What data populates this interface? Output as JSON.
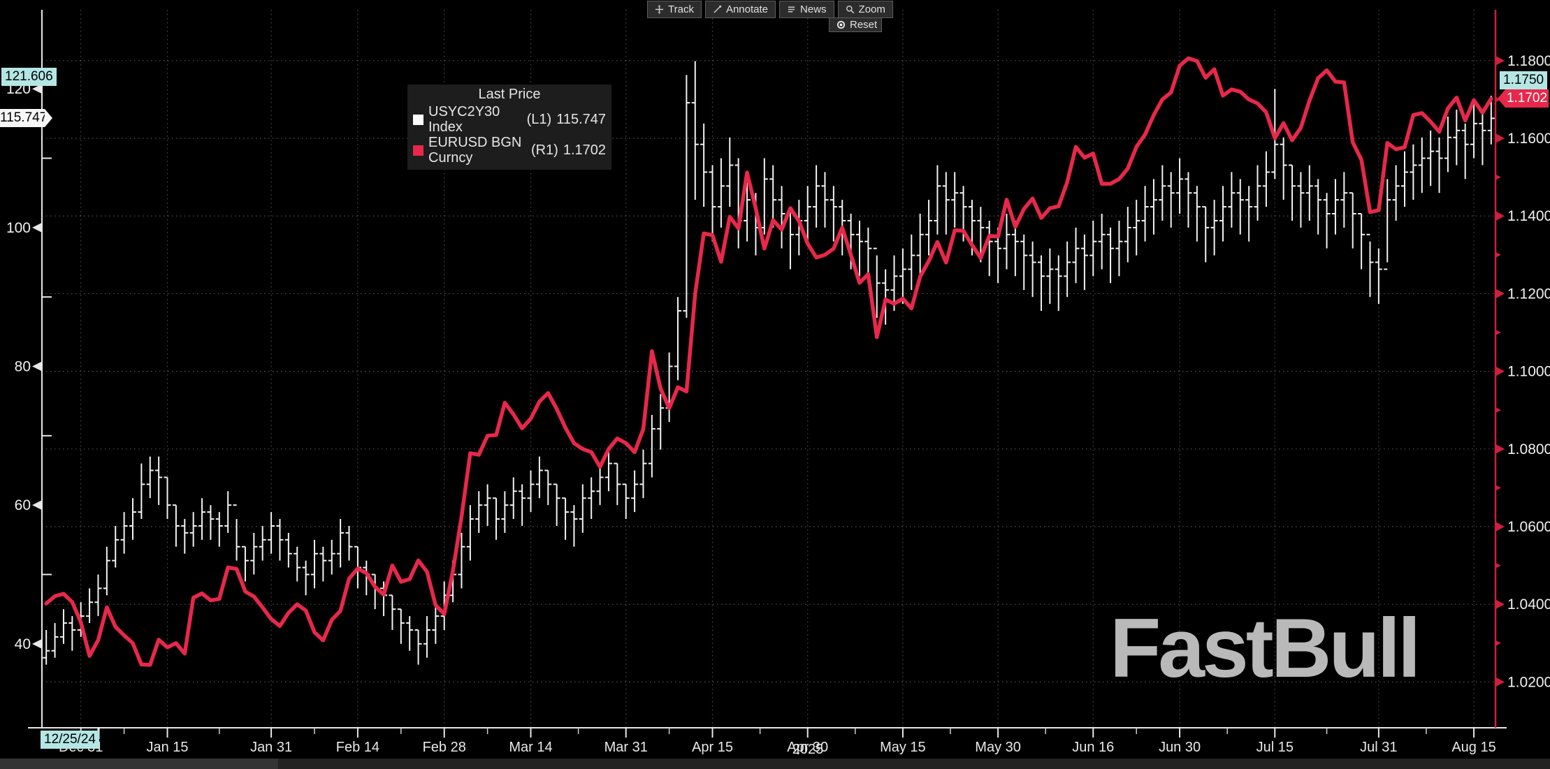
{
  "toolbar": {
    "buttons": [
      {
        "label": "Track",
        "icon": "track-icon"
      },
      {
        "label": "Annotate",
        "icon": "annotate-icon"
      },
      {
        "label": "News",
        "icon": "news-icon"
      },
      {
        "label": "Zoom",
        "icon": "zoom-icon"
      }
    ],
    "reset_label": "Reset"
  },
  "legend": {
    "title": "Last Price",
    "series": [
      {
        "swatch_color": "#ffffff",
        "label": "USYC2Y30 Index",
        "axis": "(L1)",
        "value": "115.747"
      },
      {
        "swatch_color": "#e7284a",
        "label": "EURUSD BGN Curncy",
        "axis": "(R1)",
        "value": "1.1702"
      }
    ]
  },
  "crosshair": {
    "l1_value": "121.606",
    "r1_value": "1.1750",
    "date": "12/25/24"
  },
  "markers": {
    "l1_last": "115.747",
    "r1_last": "1.1702"
  },
  "watermark": {
    "text": "FastBull"
  },
  "colors": {
    "background": "#000000",
    "bar_series": "#f2f2f2",
    "line_series": "#e7284a",
    "right_axis": "#cf1f3d",
    "left_axis": "#e8e8e8",
    "crosshair_box": "#b4e6e4",
    "grid": "#9a9a9a",
    "watermark": "#b9b9b9"
  },
  "chart_data": {
    "type": "mixed",
    "title": "",
    "x_axis": {
      "year_label": "2025",
      "start_date_label": "12/25/24",
      "labels": [
        {
          "text": "Dec 31",
          "index": 4
        },
        {
          "text": "Jan 15",
          "index": 14
        },
        {
          "text": "Jan 31",
          "index": 26
        },
        {
          "text": "Feb 14",
          "index": 36
        },
        {
          "text": "Feb 28",
          "index": 46
        },
        {
          "text": "Mar 14",
          "index": 56
        },
        {
          "text": "Mar 31",
          "index": 67
        },
        {
          "text": "Apr 15",
          "index": 77
        },
        {
          "text": "Apr 30",
          "index": 88
        },
        {
          "text": "May 15",
          "index": 99
        },
        {
          "text": "May 30",
          "index": 110
        },
        {
          "text": "Jun 16",
          "index": 121
        },
        {
          "text": "Jun 30",
          "index": 131
        },
        {
          "text": "Jul 15",
          "index": 142
        },
        {
          "text": "Jul 31",
          "index": 154
        },
        {
          "text": "Aug 15",
          "index": 165
        }
      ]
    },
    "left_axis": {
      "ticks": [
        120,
        100,
        80,
        60,
        40
      ],
      "minor_ticks": [
        110,
        90,
        70,
        50
      ],
      "range": [
        27.9,
        131.4
      ]
    },
    "right_axis": {
      "ticks": [
        1.18,
        1.16,
        1.14,
        1.12,
        1.1,
        1.08,
        1.06,
        1.04,
        1.02
      ],
      "tick_labels": [
        "1.1800",
        "1.1600",
        "1.1400",
        "1.1200",
        "1.1000",
        "1.0800",
        "1.0600",
        "1.0400",
        "1.0200"
      ],
      "minor_ticks": [
        1.17,
        1.15,
        1.13,
        1.11,
        1.09,
        1.07,
        1.05,
        1.03
      ],
      "range": [
        1.0082,
        1.1931
      ]
    },
    "series": [
      {
        "name": "USYC2Y30 Index",
        "axis": "L1",
        "type": "ohlc_bars",
        "color": "#f2f2f2",
        "last": 115.747,
        "bars_hlc": [
          [
            42,
            37,
            39
          ],
          [
            43,
            38,
            41
          ],
          [
            45,
            40,
            43
          ],
          [
            44,
            39,
            42
          ],
          [
            46,
            41,
            44
          ],
          [
            48,
            43,
            46
          ],
          [
            50,
            44,
            48
          ],
          [
            54,
            47,
            52
          ],
          [
            57,
            51,
            55
          ],
          [
            59,
            53,
            57
          ],
          [
            61,
            55,
            59
          ],
          [
            66,
            58,
            63
          ],
          [
            67,
            61,
            65
          ],
          [
            67,
            60,
            64
          ],
          [
            64,
            58,
            60
          ],
          [
            60,
            54,
            57
          ],
          [
            58,
            53,
            56
          ],
          [
            59,
            54,
            57
          ],
          [
            61,
            55,
            59
          ],
          [
            60,
            55,
            58
          ],
          [
            59,
            54,
            57
          ],
          [
            62,
            56,
            60
          ],
          [
            58,
            52,
            54
          ],
          [
            54,
            49,
            52
          ],
          [
            56,
            50,
            54
          ],
          [
            57,
            52,
            55
          ],
          [
            59,
            53,
            57
          ],
          [
            58,
            52,
            55
          ],
          [
            56,
            51,
            53
          ],
          [
            54,
            49,
            51
          ],
          [
            52,
            47,
            50
          ],
          [
            55,
            48,
            53
          ],
          [
            54,
            49,
            52
          ],
          [
            55,
            50,
            53
          ],
          [
            58,
            51,
            56
          ],
          [
            57,
            52,
            54
          ],
          [
            54,
            48,
            51
          ],
          [
            52,
            47,
            50
          ],
          [
            50,
            45,
            48
          ],
          [
            49,
            44,
            47
          ],
          [
            47,
            42,
            45
          ],
          [
            45,
            40,
            43
          ],
          [
            44,
            39,
            42
          ],
          [
            42,
            37,
            40
          ],
          [
            44,
            38,
            42
          ],
          [
            46,
            40,
            44
          ],
          [
            49,
            42,
            47
          ],
          [
            52,
            46,
            50
          ],
          [
            56,
            48,
            54
          ],
          [
            60,
            52,
            58
          ],
          [
            62,
            56,
            60
          ],
          [
            63,
            57,
            61
          ],
          [
            61,
            55,
            58
          ],
          [
            62,
            56,
            60
          ],
          [
            64,
            58,
            62
          ],
          [
            63,
            57,
            61
          ],
          [
            65,
            59,
            63
          ],
          [
            67,
            61,
            65
          ],
          [
            65,
            60,
            63
          ],
          [
            63,
            57,
            61
          ],
          [
            61,
            55,
            59
          ],
          [
            60,
            54,
            58
          ],
          [
            63,
            56,
            61
          ],
          [
            64,
            58,
            62
          ],
          [
            66,
            60,
            64
          ],
          [
            68,
            62,
            66
          ],
          [
            66,
            60,
            63
          ],
          [
            63,
            58,
            61
          ],
          [
            65,
            59,
            63
          ],
          [
            68,
            61,
            66
          ],
          [
            73,
            64,
            71
          ],
          [
            76,
            68,
            74
          ],
          [
            82,
            72,
            80
          ],
          [
            90,
            78,
            88
          ],
          [
            122,
            87,
            118
          ],
          [
            124,
            104,
            112
          ],
          [
            115,
            103,
            108
          ],
          [
            109,
            98,
            103
          ],
          [
            110,
            100,
            106
          ],
          [
            113,
            103,
            109
          ],
          [
            110,
            97,
            101
          ],
          [
            107,
            98,
            104
          ],
          [
            105,
            96,
            100
          ],
          [
            110,
            99,
            107
          ],
          [
            109,
            100,
            104
          ],
          [
            106,
            97,
            102
          ],
          [
            103,
            94,
            99
          ],
          [
            104,
            96,
            101
          ],
          [
            106,
            98,
            103
          ],
          [
            109,
            100,
            106
          ],
          [
            108,
            100,
            104
          ],
          [
            106,
            98,
            103
          ],
          [
            104,
            96,
            101
          ],
          [
            102,
            94,
            99
          ],
          [
            101,
            93,
            98
          ],
          [
            100,
            92,
            97
          ],
          [
            96,
            87,
            92
          ],
          [
            94,
            86,
            91
          ],
          [
            96,
            88,
            93
          ],
          [
            97,
            89,
            94
          ],
          [
            99,
            91,
            96
          ],
          [
            102,
            93,
            99
          ],
          [
            104,
            96,
            101
          ],
          [
            109,
            99,
            106
          ],
          [
            108,
            99,
            104
          ],
          [
            108,
            100,
            105
          ],
          [
            106,
            98,
            103
          ],
          [
            104,
            96,
            101
          ],
          [
            103,
            95,
            100
          ],
          [
            101,
            93,
            98
          ],
          [
            100,
            92,
            97
          ],
          [
            102,
            94,
            99
          ],
          [
            101,
            93,
            98
          ],
          [
            99,
            91,
            96
          ],
          [
            98,
            90,
            95
          ],
          [
            96,
            88,
            93
          ],
          [
            97,
            89,
            94
          ],
          [
            96,
            88,
            93
          ],
          [
            98,
            90,
            95
          ],
          [
            100,
            92,
            97
          ],
          [
            99,
            91,
            96
          ],
          [
            101,
            93,
            98
          ],
          [
            102,
            94,
            99
          ],
          [
            100,
            92,
            97
          ],
          [
            101,
            93,
            98
          ],
          [
            103,
            95,
            100
          ],
          [
            104,
            96,
            101
          ],
          [
            106,
            98,
            103
          ],
          [
            107,
            99,
            104
          ],
          [
            109,
            101,
            106
          ],
          [
            108,
            100,
            105
          ],
          [
            110,
            102,
            107
          ],
          [
            108,
            100,
            105
          ],
          [
            106,
            98,
            103
          ],
          [
            103,
            95,
            100
          ],
          [
            104,
            96,
            101
          ],
          [
            106,
            98,
            103
          ],
          [
            108,
            100,
            105
          ],
          [
            107,
            99,
            104
          ],
          [
            106,
            98,
            103
          ],
          [
            109,
            101,
            106
          ],
          [
            111,
            103,
            108
          ],
          [
            120,
            107,
            112
          ],
          [
            113,
            104,
            109
          ],
          [
            109,
            101,
            106
          ],
          [
            108,
            100,
            105
          ],
          [
            109,
            101,
            106
          ],
          [
            107,
            99,
            104
          ],
          [
            105,
            97,
            102
          ],
          [
            107,
            99,
            104
          ],
          [
            108,
            100,
            105
          ],
          [
            105,
            97,
            102
          ],
          [
            102,
            94,
            99
          ],
          [
            98,
            90,
            95
          ],
          [
            97,
            89,
            94
          ],
          [
            107,
            95,
            104
          ],
          [
            109,
            101,
            106
          ],
          [
            111,
            103,
            108
          ],
          [
            112,
            104,
            109
          ],
          [
            113,
            105,
            110
          ],
          [
            114,
            106,
            111
          ],
          [
            113,
            105,
            110
          ],
          [
            116,
            108,
            113
          ],
          [
            117,
            109,
            114
          ],
          [
            115,
            107,
            112
          ],
          [
            118,
            110,
            115
          ],
          [
            117,
            109,
            114
          ],
          [
            119,
            112,
            115.75
          ]
        ]
      },
      {
        "name": "EURUSD BGN Curncy",
        "axis": "R1",
        "type": "line",
        "color": "#e7284a",
        "last": 1.1702,
        "values": [
          1.0402,
          1.0421,
          1.0427,
          1.0406,
          1.0354,
          1.0267,
          1.0308,
          1.0392,
          1.0342,
          1.032,
          1.03,
          1.0245,
          1.0244,
          1.0309,
          1.0289,
          1.03,
          1.0273,
          1.0417,
          1.0428,
          1.041,
          1.0414,
          1.0495,
          1.0491,
          1.0433,
          1.042,
          1.0392,
          1.0362,
          1.0344,
          1.0378,
          1.04,
          1.0384,
          1.0328,
          1.0307,
          1.036,
          1.0383,
          1.0466,
          1.0492,
          1.048,
          1.0445,
          1.0425,
          1.05,
          1.0458,
          1.0465,
          1.0513,
          1.0484,
          1.0398,
          1.0375,
          1.0486,
          1.0626,
          1.0789,
          1.0785,
          1.0834,
          1.0836,
          1.0919,
          1.0889,
          1.0853,
          1.0878,
          1.0922,
          1.0944,
          1.0903,
          1.0855,
          1.0815,
          1.08,
          1.0792,
          1.0754,
          1.08,
          1.0827,
          1.0815,
          1.0792,
          1.0851,
          1.1052,
          1.0956,
          1.0905,
          1.0959,
          1.0948,
          1.12,
          1.1355,
          1.1351,
          1.1282,
          1.1398,
          1.1368,
          1.1512,
          1.142,
          1.1316,
          1.1389,
          1.1365,
          1.142,
          1.1387,
          1.1329,
          1.1293,
          1.13,
          1.1316,
          1.137,
          1.13,
          1.1228,
          1.125,
          1.1088,
          1.1185,
          1.1174,
          1.1187,
          1.1162,
          1.1244,
          1.1284,
          1.1333,
          1.128,
          1.1363,
          1.1362,
          1.1325,
          1.1292,
          1.1349,
          1.1347,
          1.1442,
          1.1372,
          1.1418,
          1.1445,
          1.1395,
          1.142,
          1.1425,
          1.1487,
          1.1578,
          1.155,
          1.1561,
          1.1483,
          1.1483,
          1.1495,
          1.1522,
          1.1578,
          1.161,
          1.166,
          1.17,
          1.1718,
          1.1787,
          1.1806,
          1.1799,
          1.1756,
          1.1778,
          1.171,
          1.1726,
          1.172,
          1.17,
          1.169,
          1.1667,
          1.16,
          1.1639,
          1.1595,
          1.1627,
          1.1697,
          1.1755,
          1.1775,
          1.1746,
          1.1744,
          1.159,
          1.1545,
          1.141,
          1.1415,
          1.1588,
          1.1572,
          1.1577,
          1.166,
          1.1665,
          1.1643,
          1.1617,
          1.1677,
          1.1705,
          1.1646,
          1.1698,
          1.1666,
          1.1702
        ]
      }
    ]
  }
}
